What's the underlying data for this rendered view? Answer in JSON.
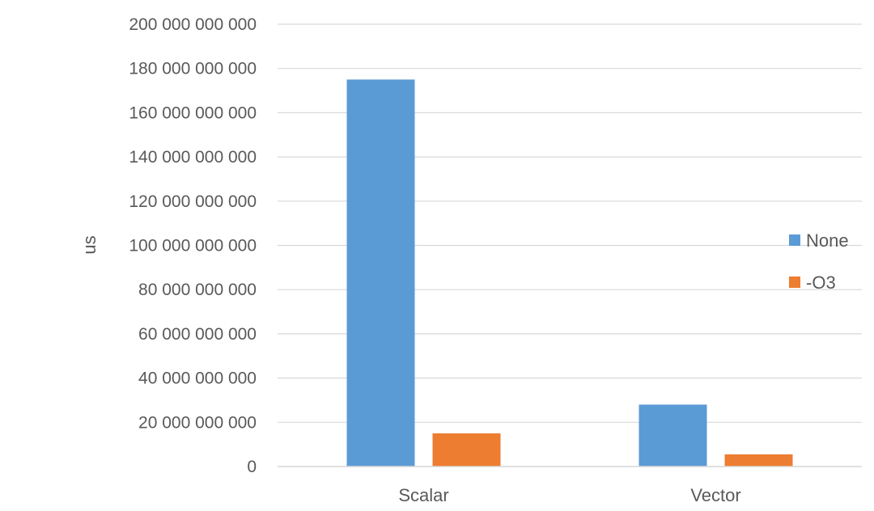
{
  "chart_data": {
    "type": "bar",
    "title": "",
    "xlabel": "",
    "ylabel": "us",
    "categories": [
      "Scalar",
      "Vector"
    ],
    "series": [
      {
        "name": "None",
        "values": [
          175000000000,
          28000000000
        ],
        "color": "#5b9bd5"
      },
      {
        "name": "-O3",
        "values": [
          15000000000,
          5500000000
        ],
        "color": "#ed7d31"
      }
    ],
    "ylim": [
      0,
      200000000000
    ],
    "yticks": [
      "0",
      "20 000 000 000",
      "40 000 000 000",
      "60 000 000 000",
      "80 000 000 000",
      "100 000 000 000",
      "120 000 000 000",
      "140 000 000 000",
      "160 000 000 000",
      "180 000 000 000",
      "200 000 000 000"
    ],
    "grid": true,
    "legend_position": "right"
  }
}
